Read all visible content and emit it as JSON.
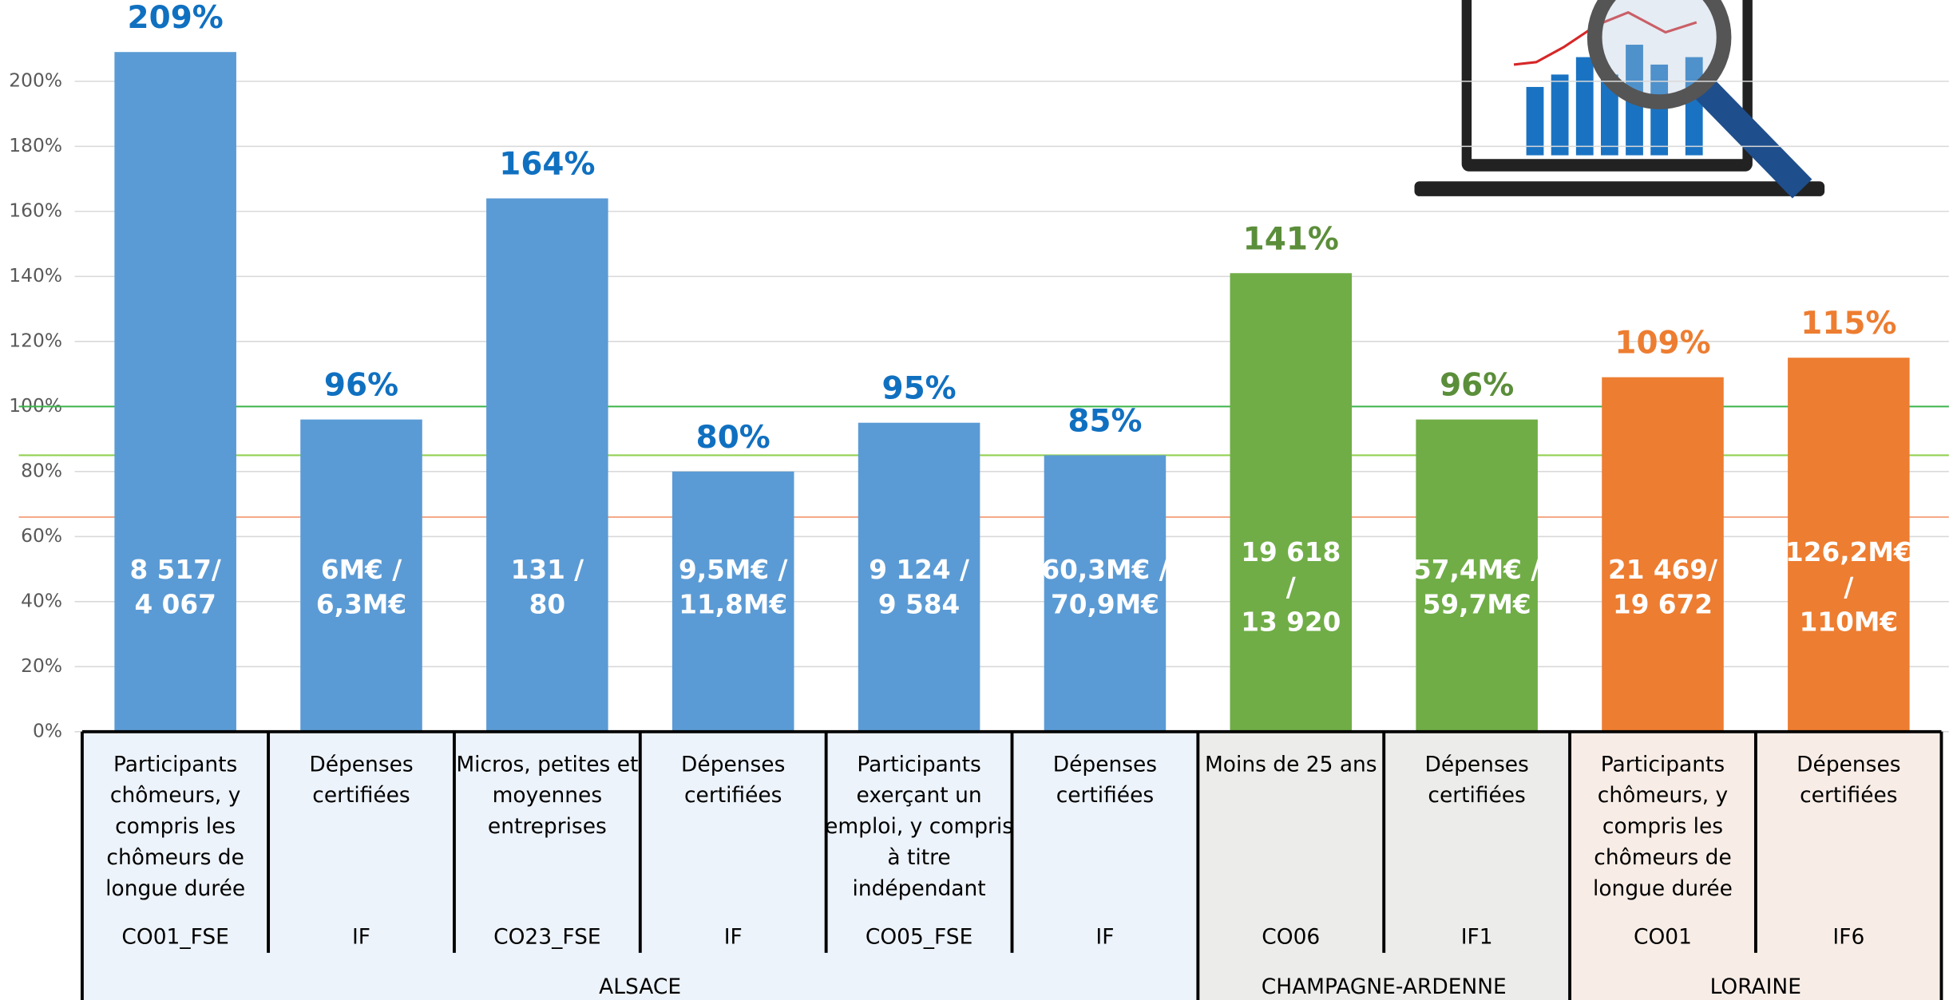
{
  "chart_data": {
    "type": "bar",
    "ylim": [
      0,
      225
    ],
    "yticks": [
      {
        "value": 0,
        "label": "0%"
      },
      {
        "value": 20,
        "label": "20%"
      },
      {
        "value": 40,
        "label": "40%"
      },
      {
        "value": 60,
        "label": "60%"
      },
      {
        "value": 80,
        "label": "80%"
      },
      {
        "value": 100,
        "label": "100%"
      },
      {
        "value": 120,
        "label": "120%"
      },
      {
        "value": 140,
        "label": "140%"
      },
      {
        "value": 160,
        "label": "160%"
      },
      {
        "value": 180,
        "label": "180%"
      },
      {
        "value": 200,
        "label": "200%"
      }
    ],
    "grid": true,
    "categories": [
      [
        "Participants",
        "chômeurs, y",
        "compris les",
        "chômeurs de",
        "longue durée"
      ],
      [
        "Dépenses",
        "certifiées"
      ],
      [
        "Micros, petites et",
        "moyennes",
        "entreprises"
      ],
      [
        "Dépenses",
        "certifiées"
      ],
      [
        "Participants",
        "exerçant un",
        "emploi, y compris",
        "à titre",
        "indépendant"
      ],
      [
        "Dépenses",
        "certifiées"
      ],
      [
        "Moins de 25 ans"
      ],
      [
        "Dépenses",
        "certifiées"
      ],
      [
        "Participants",
        "chômeurs, y",
        "compris les",
        "chômeurs de",
        "longue durée"
      ],
      [
        "Dépenses",
        "certifiées"
      ]
    ],
    "codes": [
      "CO01_FSE",
      "IF",
      "CO23_FSE",
      "IF",
      "CO05_FSE",
      "IF",
      "CO06",
      "IF1",
      "CO01",
      "IF6"
    ],
    "values": [
      209,
      96,
      164,
      80,
      95,
      85,
      141,
      96,
      109,
      115
    ],
    "value_labels": [
      "209%",
      "96%",
      "164%",
      "80%",
      "95%",
      "85%",
      "141%",
      "96%",
      "109%",
      "115%"
    ],
    "inner_labels": [
      [
        "8 517/",
        "4 067"
      ],
      [
        "6M€ /",
        "6,3M€"
      ],
      [
        "131 /",
        "80"
      ],
      [
        "9,5M€ /",
        "11,8M€"
      ],
      [
        "9 124 /",
        "9 584"
      ],
      [
        "60,3M€ /",
        "70,9M€"
      ],
      [
        "19 618",
        "/",
        "13 920"
      ],
      [
        "57,4M€ /",
        "59,7M€"
      ],
      [
        "21 469/",
        "19 672"
      ],
      [
        "126,2M€",
        "/",
        "110M€"
      ]
    ],
    "colors": [
      "#5b9bd5",
      "#5b9bd5",
      "#5b9bd5",
      "#5b9bd5",
      "#5b9bd5",
      "#5b9bd5",
      "#70ad47",
      "#70ad47",
      "#ed7d31",
      "#ed7d31"
    ],
    "label_colors": [
      "#1070c0",
      "#1070c0",
      "#1070c0",
      "#1070c0",
      "#1070c0",
      "#1070c0",
      "#5b8e3a",
      "#5b8e3a",
      "#ed7d31",
      "#ed7d31"
    ],
    "groups": [
      {
        "name": "ALSACE",
        "size": 6,
        "color": "#edf3fa"
      },
      {
        "name": "CHAMPAGNE-ARDENNE",
        "size": 2,
        "color": "#ecedea"
      },
      {
        "name": "LORAINE",
        "size": 2,
        "color": "#f8ede6"
      }
    ],
    "reference_lines": [
      {
        "value": 100,
        "color": "#3cb44b"
      },
      {
        "value": 85,
        "color": "#92d050"
      },
      {
        "value": 66,
        "color": "#f4a582"
      }
    ]
  }
}
